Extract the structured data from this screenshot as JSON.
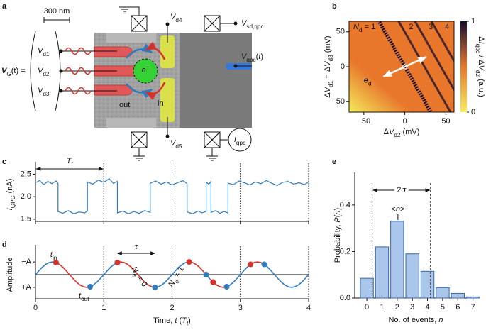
{
  "diagram": {
    "panel": "a",
    "scale_bar": "300 nm",
    "vg_label": [
      {
        "b": "V"
      },
      {
        "sub": "G"
      },
      "(t) ="
    ],
    "gate_voltages": [
      [
        {
          "i": "V"
        },
        {
          "sub": "d1"
        }
      ],
      [
        {
          "i": "V"
        },
        {
          "sub": "d2"
        }
      ],
      [
        {
          "i": "V"
        },
        {
          "sub": "d3"
        }
      ]
    ],
    "electron": [
      "e",
      {
        "sup": "−"
      }
    ],
    "in": "in",
    "out": "out",
    "vd4": [
      {
        "i": "V"
      },
      {
        "sub": "d4"
      }
    ],
    "vd5": [
      {
        "i": "V"
      },
      {
        "sub": "d5"
      }
    ],
    "vsd": [
      {
        "i": "V"
      },
      {
        "sub": "sd,qpc"
      }
    ],
    "vqpc": [
      {
        "i": "V"
      },
      {
        "sub": "qpc"
      },
      "(",
      {
        "i": "t"
      },
      ")"
    ],
    "iqpc": [
      {
        "i": "I"
      },
      {
        "sub": "qpc"
      }
    ]
  },
  "chart_data": [
    {
      "panel": "b",
      "type": "heatmap",
      "xlabel": [
        "Δ",
        {
          "i": "V"
        },
        {
          "sub": "d2"
        },
        " (mV)"
      ],
      "ylabel": [
        "Δ",
        {
          "i": "V"
        },
        {
          "sub": "d1"
        },
        " = Δ",
        {
          "i": "V"
        },
        {
          "sub": "d3"
        },
        " (mV)"
      ],
      "xlim": [
        -68,
        60
      ],
      "xticks": [
        {
          "value": -50,
          "label": "−50"
        },
        0,
        50
      ],
      "ylim": [
        -65,
        65
      ],
      "yticks": [
        {
          "value": -50,
          "label": "−50"
        },
        0,
        50
      ],
      "colorbar": {
        "label": [
          "Δ",
          {
            "i": "I"
          },
          {
            "sub": "qpc"
          },
          " / Δ",
          {
            "i": "V"
          },
          {
            "sub": "d2"
          },
          " (a.u.)"
        ],
        "ticks": [
          0,
          1
        ],
        "colors": [
          "#f4ec5c",
          "#e8772c",
          "#170d2c"
        ]
      },
      "annotations": [
        [
          {
            "i": "N"
          },
          {
            "sub": "d"
          },
          " = 1"
        ],
        "2",
        "3",
        "4"
      ],
      "vector_label": [
        {
          "b": "e"
        },
        {
          "sub": "d"
        }
      ]
    },
    {
      "panel": "c",
      "type": "line",
      "color": "#2e7bbf",
      "grid": true,
      "ylabel": [
        {
          "i": "I"
        },
        {
          "sub": "QPC"
        },
        " (nA)"
      ],
      "xlim": [
        0,
        4
      ],
      "xticks": [
        0,
        1,
        2,
        3,
        4
      ],
      "ylim": [
        1.45,
        2.65
      ],
      "yticks": [
        {
          "value": 1.5,
          "label": "1.5"
        },
        {
          "value": 2.0,
          "label": "2.0"
        },
        {
          "value": 2.5,
          "label": "2.5"
        }
      ],
      "period_label": [
        {
          "i": "T"
        },
        {
          "sub": "f"
        }
      ],
      "x": [
        0,
        0.06,
        0.12,
        0.18,
        0.24,
        0.3,
        0.33,
        0.33,
        0.4,
        0.48,
        0.56,
        0.64,
        0.72,
        0.76,
        0.76,
        0.84,
        0.92,
        1.0,
        1.08,
        1.14,
        1.2,
        1.2,
        1.28,
        1.36,
        1.44,
        1.52,
        1.6,
        1.68,
        1.68,
        1.76,
        1.84,
        1.92,
        2.0,
        2.08,
        2.16,
        2.22,
        2.22,
        2.3,
        2.38,
        2.44,
        2.5,
        2.5,
        2.54,
        2.57,
        2.57,
        2.64,
        2.7,
        2.76,
        2.82,
        2.82,
        2.9,
        2.98,
        3.06,
        3.14,
        3.22,
        3.3,
        3.38,
        3.46,
        3.54,
        3.62,
        3.7,
        3.78,
        3.86,
        3.94,
        4.0
      ],
      "values": [
        2.31,
        2.36,
        2.27,
        2.34,
        2.29,
        2.35,
        2.3,
        1.67,
        1.63,
        1.69,
        1.62,
        1.66,
        1.64,
        1.68,
        2.33,
        2.28,
        2.37,
        2.32,
        2.4,
        2.3,
        2.34,
        1.64,
        1.68,
        1.62,
        1.67,
        1.63,
        1.69,
        1.65,
        2.3,
        2.35,
        2.28,
        2.33,
        2.26,
        2.31,
        2.36,
        2.29,
        1.66,
        1.62,
        1.68,
        1.64,
        1.67,
        2.32,
        2.28,
        2.34,
        1.65,
        1.69,
        1.63,
        1.67,
        1.64,
        2.3,
        2.27,
        2.35,
        2.31,
        2.26,
        2.33,
        2.29,
        2.36,
        2.3,
        2.25,
        2.32,
        2.34,
        2.28,
        2.31,
        2.27,
        2.33
      ]
    },
    {
      "panel": "d",
      "type": "line",
      "grid": true,
      "ylabel": "Amplitude",
      "xlabel": [
        "Time, ",
        {
          "i": "t"
        },
        " (",
        {
          "i": "T"
        },
        {
          "sub": "f"
        },
        ")"
      ],
      "xlim": [
        0,
        4
      ],
      "xticks": [
        0,
        1,
        2,
        3,
        4
      ],
      "ylim": [
        1.9,
        -1.9
      ],
      "yticks": [
        {
          "value": -1,
          "label": "−A"
        },
        {
          "value": 1,
          "label": "+A"
        }
      ],
      "x": [
        0,
        0.05,
        0.1,
        0.15,
        0.2,
        0.25,
        0.3,
        0.35,
        0.4,
        0.45,
        0.5,
        0.55,
        0.6,
        0.65,
        0.7,
        0.75,
        0.8,
        0.85,
        0.9,
        0.95,
        1,
        1.05,
        1.1,
        1.15,
        1.2,
        1.25,
        1.3,
        1.35,
        1.4,
        1.45,
        1.5,
        1.55,
        1.6,
        1.65,
        1.7,
        1.75,
        1.8,
        1.85,
        1.9,
        1.95,
        2,
        2.05,
        2.1,
        2.15,
        2.2,
        2.25,
        2.3,
        2.35,
        2.4,
        2.45,
        2.5,
        2.55,
        2.6,
        2.65,
        2.7,
        2.75,
        2.8,
        2.85,
        2.9,
        2.95,
        3,
        3.05,
        3.1,
        3.15,
        3.2,
        3.25,
        3.3,
        3.35,
        3.4,
        3.45,
        3.5,
        3.55,
        3.6,
        3.65,
        3.7,
        3.75,
        3.8,
        3.85,
        3.9,
        3.95,
        4
      ],
      "series": [
        {
          "name": [
            {
              "i": "N"
            },
            {
              "sub": "e"
            },
            " = 0"
          ],
          "color": "#d6312b",
          "values": [
            null,
            null,
            null,
            null,
            null,
            null,
            -0.951,
            -0.809,
            -0.588,
            -0.309,
            0,
            0.309,
            0.588,
            0.809,
            0.951,
            1,
            0.951,
            null,
            null,
            null,
            null,
            null,
            null,
            null,
            -0.951,
            -1,
            -0.951,
            -0.809,
            -0.588,
            -0.309,
            0,
            0.309,
            0.588,
            0.809,
            0.951,
            1,
            null,
            null,
            null,
            null,
            null,
            null,
            null,
            null,
            null,
            -1,
            -0.951,
            -0.809,
            -0.588,
            -0.309,
            0,
            null,
            0.588,
            0.809,
            0.951,
            1,
            0.951,
            null,
            null,
            null,
            null,
            null,
            null,
            -0.809,
            -0.951,
            -1,
            -0.951,
            -0.809,
            null,
            null,
            null,
            null,
            null,
            null,
            null,
            null,
            null,
            null,
            null,
            null,
            null
          ]
        },
        {
          "name": [
            {
              "i": "N"
            },
            {
              "sub": "e"
            },
            " = 1"
          ],
          "color": "#2e7bbf",
          "values": [
            0,
            -0.309,
            -0.588,
            -0.809,
            -0.951,
            -1,
            -0.951,
            null,
            null,
            null,
            null,
            null,
            null,
            null,
            null,
            null,
            0.951,
            0.809,
            0.588,
            0.309,
            0,
            -0.309,
            -0.588,
            -0.809,
            -0.951,
            null,
            null,
            null,
            null,
            null,
            null,
            null,
            null,
            null,
            null,
            1,
            0.951,
            0.809,
            0.588,
            0.309,
            0,
            -0.309,
            -0.588,
            -0.809,
            -0.951,
            -1,
            null,
            null,
            null,
            null,
            0,
            0.309,
            0.588,
            null,
            null,
            null,
            0.951,
            0.809,
            0.588,
            0.309,
            0,
            -0.309,
            -0.588,
            -0.809,
            null,
            null,
            null,
            -0.809,
            -0.588,
            -0.309,
            0,
            0.309,
            0.588,
            0.809,
            0.951,
            1,
            0.951,
            0.809,
            0.588,
            0.309,
            0
          ]
        }
      ],
      "events": [
        {
          "name": [
            {
              "i": "t"
            },
            {
              "sub": "in"
            }
          ],
          "color": "#d6312b",
          "x": [
            0.3,
            1.2,
            2.25,
            2.6,
            3.15
          ],
          "values": [
            -0.951,
            -0.951,
            -1,
            0.588,
            -0.809
          ]
        },
        {
          "name": [
            {
              "i": "t"
            },
            {
              "sub": "out"
            }
          ],
          "color": "#2e7bbf",
          "x": [
            0.8,
            1.75,
            2.5,
            2.8,
            3.35
          ],
          "values": [
            0.951,
            1,
            0,
            0.951,
            -0.809
          ]
        }
      ],
      "tau_label": "τ"
    },
    {
      "panel": "e",
      "type": "bar",
      "color": "#aac6ea",
      "edge_color": "#3567ad",
      "xlabel": [
        "No. of events, ",
        {
          "i": "n"
        }
      ],
      "ylabel": [
        "Probability, ",
        {
          "i": "P"
        },
        "(",
        {
          "i": "n"
        },
        ")"
      ],
      "x": [
        0,
        1,
        2,
        3,
        4,
        5,
        6,
        7
      ],
      "values": [
        0.085,
        0.22,
        0.33,
        0.19,
        0.115,
        0.045,
        0.02,
        0.005
      ],
      "xlim": [
        -0.8,
        7.25
      ],
      "xticks": [
        0,
        1,
        2,
        3,
        4,
        5,
        6,
        7
      ],
      "ylim": [
        0,
        0.54
      ],
      "yticks": [
        {
          "value": 0,
          "label": "0.0"
        },
        {
          "value": 0.2,
          "label": "0.2"
        },
        {
          "value": 0.4,
          "label": "0.4"
        }
      ],
      "spread": {
        "label": [
          "2",
          {
            "i": "σ"
          }
        ],
        "x": [
          0.35,
          4.2
        ]
      },
      "mean": {
        "label": [
          "<",
          {
            "i": "n"
          },
          ">"
        ],
        "x": 2.05
      }
    }
  ]
}
